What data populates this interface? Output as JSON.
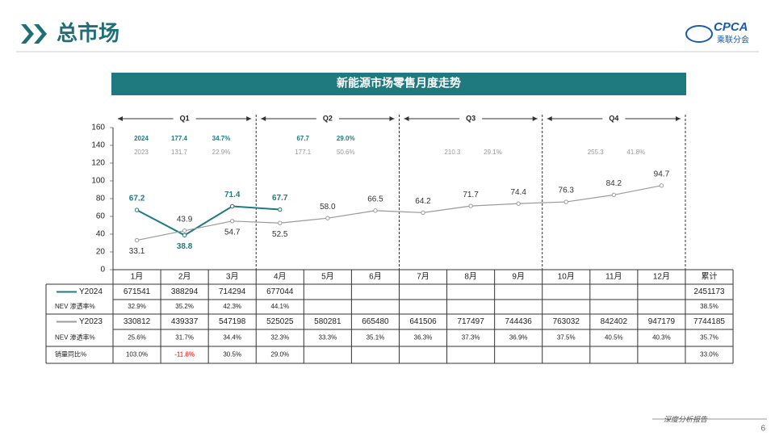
{
  "header": {
    "title": "总市场",
    "logo": {
      "text": "CPCA",
      "subtitle": "乘联分会"
    }
  },
  "chart_data": {
    "type": "line",
    "title": "新能源市场零售月度走势",
    "categories": [
      "1月",
      "2月",
      "3月",
      "4月",
      "5月",
      "6月",
      "7月",
      "8月",
      "9月",
      "10月",
      "11月",
      "12月",
      "累计"
    ],
    "series": [
      {
        "name": "Y2024",
        "color": "#1e7b85",
        "values": [
          67.2,
          38.8,
          71.4,
          67.7,
          null,
          null,
          null,
          null,
          null,
          null,
          null,
          null,
          null
        ],
        "value_labels": [
          "67.2",
          "38.8",
          "71.4",
          "67.7",
          null,
          null,
          null,
          null,
          null,
          null,
          null,
          null,
          null
        ]
      },
      {
        "name": "Y2023",
        "color": "#9a9a9a",
        "values": [
          33.1,
          43.9,
          54.7,
          52.5,
          58.0,
          66.5,
          64.2,
          71.7,
          74.4,
          76.3,
          84.2,
          94.7,
          null
        ],
        "value_labels": [
          "33.1",
          "43.9",
          "54.7",
          "52.5",
          "58.0",
          "66.5",
          "64.2",
          "71.7",
          "74.4",
          "76.3",
          "84.2",
          "94.7",
          null
        ]
      }
    ],
    "ylim": [
      0,
      160
    ],
    "yticks": [
      0,
      20,
      40,
      60,
      80,
      100,
      120,
      140,
      160
    ],
    "grid": false,
    "quarters": [
      {
        "label": "Q1",
        "y2024": [
          "2024",
          "177.4",
          "34.7%"
        ],
        "y2023": [
          "2023",
          "131.7",
          "22.9%"
        ]
      },
      {
        "label": "Q2",
        "y2024": [
          "67.7",
          "29.0%"
        ],
        "y2023": [
          "177.1",
          "50.6%"
        ]
      },
      {
        "label": "Q3",
        "y2023": [
          "210.3",
          "29.1%"
        ]
      },
      {
        "label": "Q4",
        "y2023": [
          "255.3",
          "41.8%"
        ]
      }
    ]
  },
  "table": {
    "rows": [
      {
        "cells": [
          "671541",
          "388294",
          "714294",
          "677044",
          null,
          null,
          null,
          null,
          null,
          null,
          null,
          null,
          "2451173"
        ]
      },
      {
        "label": "NEV 渗透率%",
        "cells": [
          "32.9%",
          "35.2%",
          "42.3%",
          "44.1%",
          null,
          null,
          null,
          null,
          null,
          null,
          null,
          null,
          "38.5%"
        ]
      },
      {
        "cells": [
          "330812",
          "439337",
          "547198",
          "525025",
          "580281",
          "665480",
          "641506",
          "717497",
          "744436",
          "763032",
          "842402",
          "947179",
          "7744185"
        ]
      },
      {
        "label": "NEV 渗透率%",
        "cells": [
          "25.6%",
          "31.7%",
          "34.4%",
          "32.3%",
          "33.3%",
          "35.1%",
          "36.3%",
          "37.3%",
          "36.9%",
          "37.5%",
          "40.5%",
          "40.3%",
          "35.7%"
        ]
      },
      {
        "label": "销量同比%",
        "cells": [
          "103.0%",
          "-11.6%",
          "30.5%",
          "29.0%",
          null,
          null,
          null,
          null,
          null,
          null,
          null,
          null,
          "33.0%"
        ]
      }
    ]
  },
  "footer": {
    "note": "深度分析报告",
    "page": "6"
  }
}
